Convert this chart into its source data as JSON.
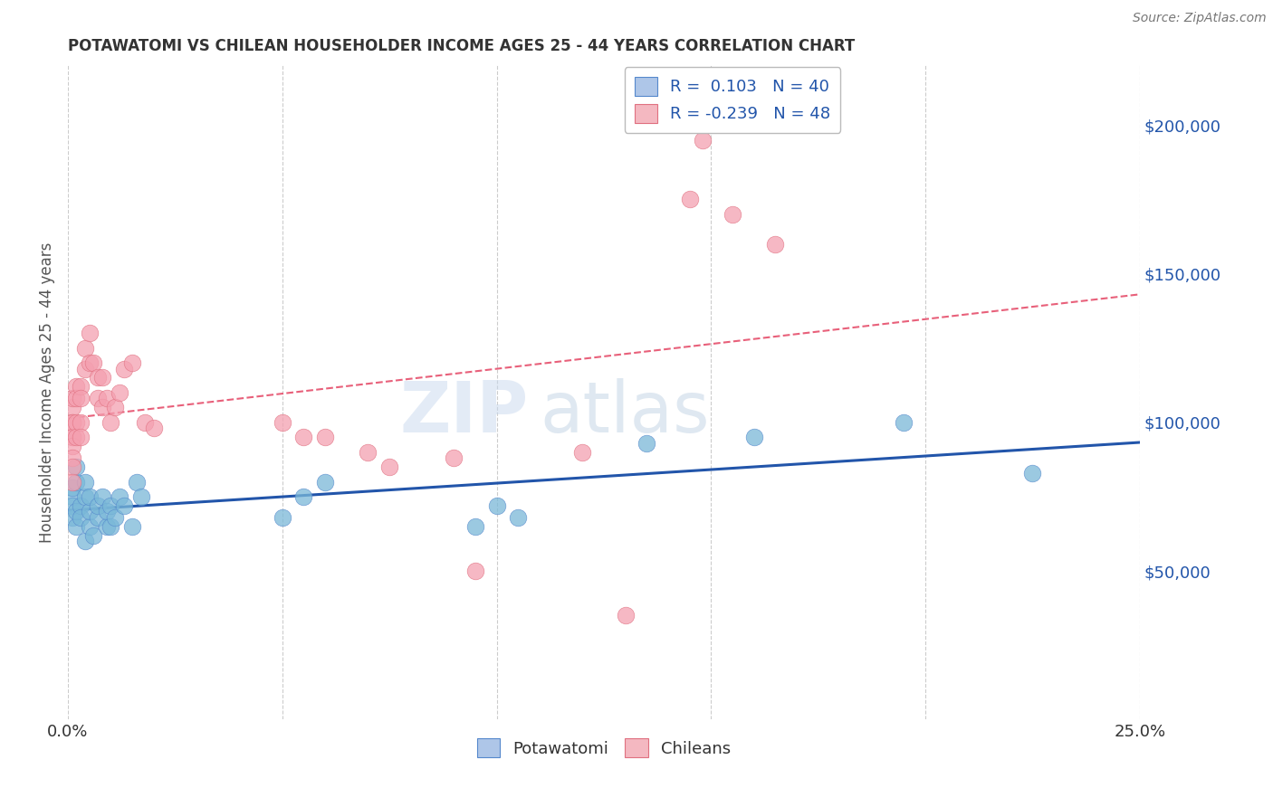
{
  "title": "POTAWATOMI VS CHILEAN HOUSEHOLDER INCOME AGES 25 - 44 YEARS CORRELATION CHART",
  "source": "Source: ZipAtlas.com",
  "ylabel": "Householder Income Ages 25 - 44 years",
  "watermark": "ZIPatlas",
  "legend_r_entries": [
    {
      "label": "R =  0.103   N = 40",
      "fc": "#aec6e8",
      "ec": "#5588cc"
    },
    {
      "label": "R = -0.239   N = 48",
      "fc": "#f4b8c1",
      "ec": "#e07080"
    }
  ],
  "legend_bottom": [
    "Potawatomi",
    "Chileans"
  ],
  "potawatomi_color": "#7ab8d8",
  "potawatomi_ec": "#5588cc",
  "chilean_color": "#f4a0b0",
  "chilean_ec": "#e07080",
  "trendline_blue_color": "#2255aa",
  "trendline_pink_color": "#e8607a",
  "xlim": [
    0.0,
    0.25
  ],
  "ylim": [
    0,
    220000
  ],
  "yticks": [
    50000,
    100000,
    150000,
    200000
  ],
  "ytick_labels": [
    "$50,000",
    "$100,000",
    "$150,000",
    "$200,000"
  ],
  "xticks": [
    0.0,
    0.05,
    0.1,
    0.15,
    0.2,
    0.25
  ],
  "xtick_labels": [
    "0.0%",
    "",
    "",
    "",
    "",
    "25.0%"
  ],
  "potawatomi_x": [
    0.001,
    0.001,
    0.001,
    0.001,
    0.002,
    0.002,
    0.002,
    0.002,
    0.003,
    0.003,
    0.004,
    0.004,
    0.004,
    0.005,
    0.005,
    0.005,
    0.006,
    0.007,
    0.007,
    0.008,
    0.009,
    0.009,
    0.01,
    0.01,
    0.011,
    0.012,
    0.013,
    0.015,
    0.016,
    0.017,
    0.05,
    0.055,
    0.06,
    0.095,
    0.1,
    0.105,
    0.135,
    0.16,
    0.195,
    0.225
  ],
  "potawatomi_y": [
    75000,
    72000,
    68000,
    78000,
    65000,
    70000,
    80000,
    85000,
    72000,
    68000,
    60000,
    75000,
    80000,
    65000,
    70000,
    75000,
    62000,
    68000,
    72000,
    75000,
    65000,
    70000,
    65000,
    72000,
    68000,
    75000,
    72000,
    65000,
    80000,
    75000,
    68000,
    75000,
    80000,
    65000,
    72000,
    68000,
    93000,
    95000,
    100000,
    83000
  ],
  "chilean_x": [
    0.001,
    0.001,
    0.001,
    0.001,
    0.001,
    0.001,
    0.001,
    0.001,
    0.001,
    0.001,
    0.002,
    0.002,
    0.002,
    0.002,
    0.003,
    0.003,
    0.003,
    0.003,
    0.004,
    0.004,
    0.005,
    0.005,
    0.006,
    0.007,
    0.007,
    0.008,
    0.008,
    0.009,
    0.01,
    0.011,
    0.012,
    0.013,
    0.015,
    0.018,
    0.02,
    0.05,
    0.055,
    0.06,
    0.07,
    0.075,
    0.09,
    0.095,
    0.12,
    0.13,
    0.145,
    0.148,
    0.155,
    0.165
  ],
  "chilean_y": [
    105000,
    100000,
    108000,
    95000,
    100000,
    95000,
    92000,
    88000,
    85000,
    80000,
    112000,
    108000,
    100000,
    95000,
    112000,
    108000,
    100000,
    95000,
    125000,
    118000,
    130000,
    120000,
    120000,
    115000,
    108000,
    115000,
    105000,
    108000,
    100000,
    105000,
    110000,
    118000,
    120000,
    100000,
    98000,
    100000,
    95000,
    95000,
    90000,
    85000,
    88000,
    50000,
    90000,
    35000,
    175000,
    195000,
    170000,
    160000
  ],
  "background_color": "#ffffff",
  "grid_color": "#cccccc"
}
